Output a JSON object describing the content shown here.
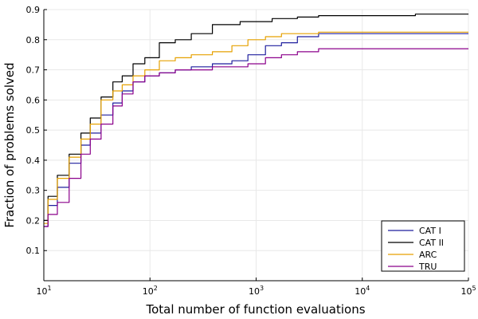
{
  "chart_data": {
    "type": "line",
    "xlabel": "Total number of function evaluations",
    "ylabel": "Fraction of problems solved",
    "xscale": "log",
    "xlim": [
      10,
      100000
    ],
    "ylim": [
      0,
      0.9
    ],
    "grid": true,
    "legend_position": "bottom-right",
    "xticks": [
      {
        "value": 10,
        "base": "10",
        "exp": "1"
      },
      {
        "value": 100,
        "base": "10",
        "exp": "2"
      },
      {
        "value": 1000,
        "base": "10",
        "exp": "3"
      },
      {
        "value": 10000,
        "base": "10",
        "exp": "4"
      },
      {
        "value": 100000,
        "base": "10",
        "exp": "5"
      }
    ],
    "yticks": [
      {
        "value": 0.1,
        "label": "0.1"
      },
      {
        "value": 0.2,
        "label": "0.2"
      },
      {
        "value": 0.3,
        "label": "0.3"
      },
      {
        "value": 0.4,
        "label": "0.4"
      },
      {
        "value": 0.5,
        "label": "0.5"
      },
      {
        "value": 0.6,
        "label": "0.6"
      },
      {
        "value": 0.7,
        "label": "0.7"
      },
      {
        "value": 0.8,
        "label": "0.8"
      },
      {
        "value": 0.9,
        "label": "0.9"
      }
    ],
    "series": [
      {
        "name": "CAT I",
        "color": "#1f1f9e",
        "points": [
          [
            10,
            0.18
          ],
          [
            12,
            0.25
          ],
          [
            15,
            0.31
          ],
          [
            20,
            0.39
          ],
          [
            25,
            0.45
          ],
          [
            30,
            0.49
          ],
          [
            40,
            0.55
          ],
          [
            50,
            0.59
          ],
          [
            60,
            0.63
          ],
          [
            80,
            0.66
          ],
          [
            100,
            0.68
          ],
          [
            150,
            0.69
          ],
          [
            200,
            0.7
          ],
          [
            300,
            0.71
          ],
          [
            500,
            0.72
          ],
          [
            700,
            0.73
          ],
          [
            1000,
            0.75
          ],
          [
            1500,
            0.78
          ],
          [
            2000,
            0.79
          ],
          [
            3000,
            0.81
          ],
          [
            5000,
            0.82
          ],
          [
            10000,
            0.82
          ],
          [
            100000,
            0.82
          ]
        ]
      },
      {
        "name": "CAT II",
        "color": "#000000",
        "points": [
          [
            10,
            0.2
          ],
          [
            12,
            0.28
          ],
          [
            15,
            0.35
          ],
          [
            20,
            0.42
          ],
          [
            25,
            0.49
          ],
          [
            30,
            0.54
          ],
          [
            40,
            0.61
          ],
          [
            50,
            0.66
          ],
          [
            60,
            0.68
          ],
          [
            80,
            0.72
          ],
          [
            100,
            0.74
          ],
          [
            150,
            0.79
          ],
          [
            200,
            0.8
          ],
          [
            300,
            0.82
          ],
          [
            500,
            0.85
          ],
          [
            1000,
            0.86
          ],
          [
            2000,
            0.87
          ],
          [
            3000,
            0.875
          ],
          [
            5000,
            0.88
          ],
          [
            10000,
            0.88
          ],
          [
            100000,
            0.885
          ]
        ]
      },
      {
        "name": "ARC",
        "color": "#e6a100",
        "points": [
          [
            10,
            0.19
          ],
          [
            12,
            0.27
          ],
          [
            15,
            0.34
          ],
          [
            20,
            0.41
          ],
          [
            25,
            0.47
          ],
          [
            30,
            0.52
          ],
          [
            40,
            0.6
          ],
          [
            50,
            0.63
          ],
          [
            60,
            0.65
          ],
          [
            80,
            0.68
          ],
          [
            100,
            0.7
          ],
          [
            150,
            0.73
          ],
          [
            200,
            0.74
          ],
          [
            300,
            0.75
          ],
          [
            500,
            0.76
          ],
          [
            700,
            0.78
          ],
          [
            1000,
            0.8
          ],
          [
            1500,
            0.81
          ],
          [
            2000,
            0.82
          ],
          [
            3000,
            0.82
          ],
          [
            5000,
            0.825
          ],
          [
            100000,
            0.825
          ]
        ]
      },
      {
        "name": "TRU",
        "color": "#8b008b",
        "points": [
          [
            10,
            0.18
          ],
          [
            12,
            0.22
          ],
          [
            15,
            0.26
          ],
          [
            20,
            0.34
          ],
          [
            25,
            0.42
          ],
          [
            30,
            0.47
          ],
          [
            40,
            0.52
          ],
          [
            50,
            0.58
          ],
          [
            60,
            0.62
          ],
          [
            80,
            0.66
          ],
          [
            100,
            0.68
          ],
          [
            150,
            0.69
          ],
          [
            200,
            0.7
          ],
          [
            300,
            0.7
          ],
          [
            500,
            0.71
          ],
          [
            700,
            0.71
          ],
          [
            1000,
            0.72
          ],
          [
            1500,
            0.74
          ],
          [
            2000,
            0.75
          ],
          [
            3000,
            0.76
          ],
          [
            5000,
            0.77
          ],
          [
            10000,
            0.77
          ],
          [
            100000,
            0.77
          ]
        ]
      }
    ]
  }
}
